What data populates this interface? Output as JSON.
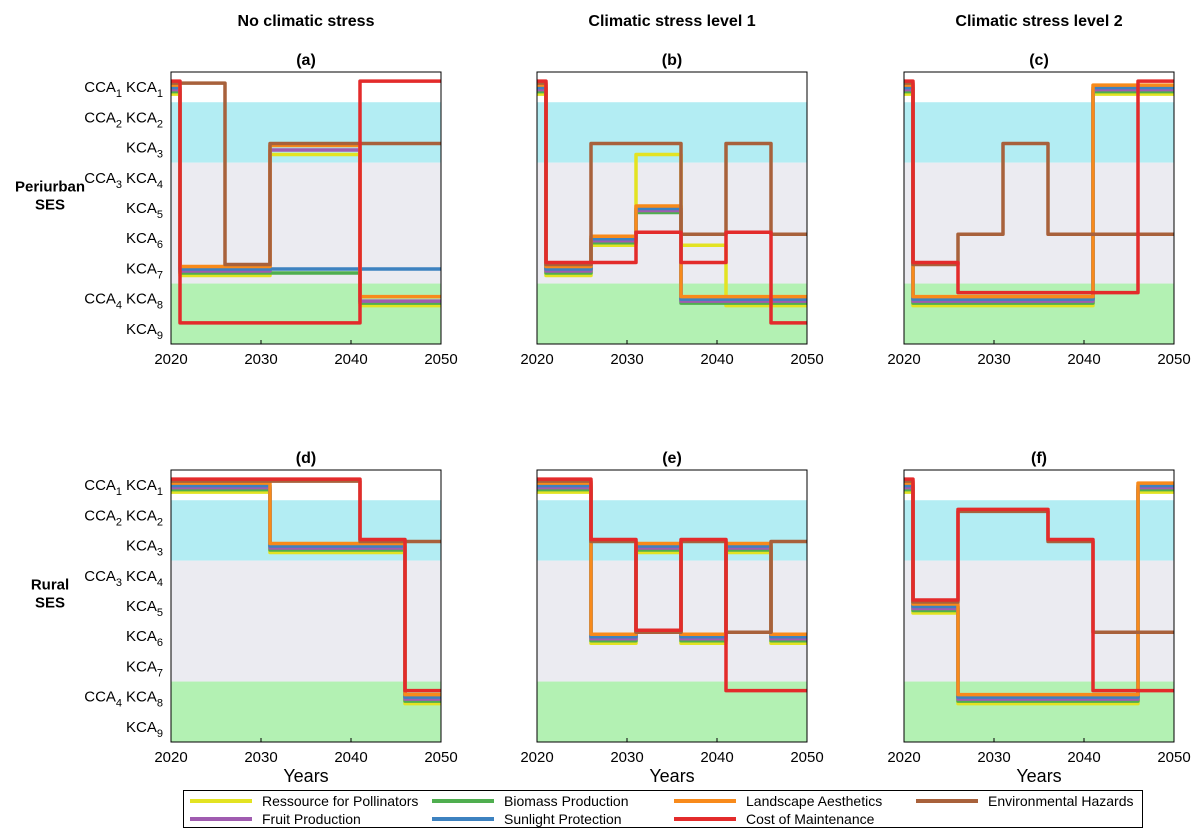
{
  "colors": {
    "band_kca1": "#ffffff",
    "band_cca2": "#b3edf3",
    "band_cca3": "#ebebf1",
    "band_cca4": "#b3f1b3"
  },
  "state_labels": [
    {
      "pre": "CCA",
      "pre_sub": "1",
      "main": "KCA",
      "sub": "1"
    },
    {
      "pre": "CCA",
      "pre_sub": "2",
      "main": "KCA",
      "sub": "2"
    },
    {
      "pre": "",
      "pre_sub": "",
      "main": "KCA",
      "sub": "3"
    },
    {
      "pre": "CCA",
      "pre_sub": "3",
      "main": "KCA",
      "sub": "4"
    },
    {
      "pre": "",
      "pre_sub": "",
      "main": "KCA",
      "sub": "5"
    },
    {
      "pre": "",
      "pre_sub": "",
      "main": "KCA",
      "sub": "6"
    },
    {
      "pre": "",
      "pre_sub": "",
      "main": "KCA",
      "sub": "7"
    },
    {
      "pre": "CCA",
      "pre_sub": "4",
      "main": "KCA",
      "sub": "8"
    },
    {
      "pre": "",
      "pre_sub": "",
      "main": "KCA",
      "sub": "9"
    }
  ],
  "column_headings": [
    "No climatic stress",
    "Climatic stress level 1",
    "Climatic stress level 2"
  ],
  "row_labels": [
    [
      "Periurban",
      "SES"
    ],
    [
      "Rural",
      "SES"
    ]
  ],
  "legend": [
    {
      "name": "Ressource for Pollinators",
      "color": "#e3e322"
    },
    {
      "name": "Biomass Production",
      "color": "#4fae4f"
    },
    {
      "name": "Landscape Aesthetics",
      "color": "#f88a1b"
    },
    {
      "name": "Environmental Hazards",
      "color": "#a8613b"
    },
    {
      "name": "Fruit Production",
      "color": "#a05cb0"
    },
    {
      "name": "Sunlight Protection",
      "color": "#3d82c0"
    },
    {
      "name": "Cost of Maintenance",
      "color": "#e32b2b"
    }
  ],
  "chart_data": [
    {
      "type": "line",
      "title": "(a)",
      "xlabel": "",
      "ylabel": "",
      "xlim": [
        2020,
        2050
      ],
      "x_ticks": [
        2020,
        2030,
        2040,
        2050
      ],
      "series": [
        {
          "name": "Ressource for Pollinators",
          "steps": [
            [
              2020,
              1
            ],
            [
              2021,
              7
            ],
            [
              2031,
              3
            ],
            [
              2041,
              8
            ]
          ]
        },
        {
          "name": "Biomass Production",
          "steps": [
            [
              2020,
              1
            ],
            [
              2021,
              7
            ],
            [
              2041,
              8
            ]
          ]
        },
        {
          "name": "Landscape Aesthetics",
          "steps": [
            [
              2020,
              1
            ],
            [
              2021,
              7
            ],
            [
              2031,
              3
            ],
            [
              2041,
              8
            ]
          ]
        },
        {
          "name": "Environmental Hazards",
          "steps": [
            [
              2020,
              1
            ],
            [
              2026,
              7
            ],
            [
              2031,
              3
            ]
          ]
        },
        {
          "name": "Fruit Production",
          "steps": [
            [
              2020,
              1
            ],
            [
              2021,
              7
            ],
            [
              2031,
              3
            ],
            [
              2041,
              8
            ]
          ]
        },
        {
          "name": "Sunlight Protection",
          "steps": [
            [
              2020,
              1
            ],
            [
              2021,
              7
            ]
          ]
        },
        {
          "name": "Cost of Maintenance",
          "steps": [
            [
              2020,
              1
            ],
            [
              2021,
              9
            ],
            [
              2041,
              1
            ]
          ]
        }
      ]
    },
    {
      "type": "line",
      "title": "(b)",
      "xlabel": "",
      "ylabel": "",
      "xlim": [
        2020,
        2050
      ],
      "x_ticks": [
        2020,
        2030,
        2040,
        2050
      ],
      "series": [
        {
          "name": "Ressource for Pollinators",
          "steps": [
            [
              2020,
              1
            ],
            [
              2021,
              7
            ],
            [
              2026,
              6
            ],
            [
              2031,
              3
            ],
            [
              2036,
              6
            ],
            [
              2041,
              8
            ]
          ]
        },
        {
          "name": "Biomass Production",
          "steps": [
            [
              2020,
              1
            ],
            [
              2021,
              7
            ],
            [
              2026,
              6
            ],
            [
              2031,
              5
            ],
            [
              2036,
              8
            ]
          ]
        },
        {
          "name": "Landscape Aesthetics",
          "steps": [
            [
              2020,
              1
            ],
            [
              2021,
              7
            ],
            [
              2026,
              6
            ],
            [
              2031,
              5
            ],
            [
              2036,
              8
            ]
          ]
        },
        {
          "name": "Environmental Hazards",
          "steps": [
            [
              2020,
              1
            ],
            [
              2021,
              7
            ],
            [
              2026,
              3
            ],
            [
              2036,
              6
            ],
            [
              2041,
              3
            ],
            [
              2046,
              6
            ]
          ]
        },
        {
          "name": "Fruit Production",
          "steps": [
            [
              2020,
              1
            ],
            [
              2021,
              7
            ],
            [
              2026,
              6
            ],
            [
              2031,
              5
            ],
            [
              2036,
              8
            ]
          ]
        },
        {
          "name": "Sunlight Protection",
          "steps": [
            [
              2020,
              1
            ],
            [
              2021,
              7
            ],
            [
              2026,
              6
            ],
            [
              2031,
              5
            ],
            [
              2036,
              8
            ]
          ]
        },
        {
          "name": "Cost of Maintenance",
          "steps": [
            [
              2020,
              1
            ],
            [
              2021,
              7
            ],
            [
              2026,
              7
            ],
            [
              2031,
              6
            ],
            [
              2036,
              7
            ],
            [
              2041,
              6
            ],
            [
              2046,
              9
            ]
          ]
        }
      ]
    },
    {
      "type": "line",
      "title": "(c)",
      "xlabel": "",
      "ylabel": "",
      "xlim": [
        2020,
        2050
      ],
      "x_ticks": [
        2020,
        2030,
        2040,
        2050
      ],
      "series": [
        {
          "name": "Ressource for Pollinators",
          "steps": [
            [
              2020,
              1
            ],
            [
              2021,
              8
            ],
            [
              2041,
              1
            ]
          ]
        },
        {
          "name": "Biomass Production",
          "steps": [
            [
              2020,
              1
            ],
            [
              2021,
              8
            ],
            [
              2041,
              1
            ]
          ]
        },
        {
          "name": "Landscape Aesthetics",
          "steps": [
            [
              2020,
              1
            ],
            [
              2021,
              8
            ],
            [
              2041,
              1
            ]
          ]
        },
        {
          "name": "Environmental Hazards",
          "steps": [
            [
              2020,
              1
            ],
            [
              2021,
              7
            ],
            [
              2026,
              6
            ],
            [
              2031,
              3
            ],
            [
              2036,
              6
            ]
          ]
        },
        {
          "name": "Fruit Production",
          "steps": [
            [
              2020,
              1
            ],
            [
              2021,
              8
            ],
            [
              2041,
              1
            ]
          ]
        },
        {
          "name": "Sunlight Protection",
          "steps": [
            [
              2020,
              1
            ],
            [
              2021,
              8
            ],
            [
              2041,
              1
            ]
          ]
        },
        {
          "name": "Cost of Maintenance",
          "steps": [
            [
              2020,
              1
            ],
            [
              2021,
              7
            ],
            [
              2026,
              8
            ],
            [
              2046,
              1
            ]
          ]
        }
      ]
    },
    {
      "type": "line",
      "title": "(d)",
      "xlabel": "Years",
      "ylabel": "",
      "xlim": [
        2020,
        2050
      ],
      "x_ticks": [
        2020,
        2030,
        2040,
        2050
      ],
      "series": [
        {
          "name": "Ressource for Pollinators",
          "steps": [
            [
              2020,
              1
            ],
            [
              2031,
              3
            ],
            [
              2046,
              8
            ]
          ]
        },
        {
          "name": "Biomass Production",
          "steps": [
            [
              2020,
              1
            ],
            [
              2031,
              3
            ],
            [
              2046,
              8
            ]
          ]
        },
        {
          "name": "Landscape Aesthetics",
          "steps": [
            [
              2020,
              1
            ],
            [
              2031,
              3
            ],
            [
              2046,
              8
            ]
          ]
        },
        {
          "name": "Environmental Hazards",
          "steps": [
            [
              2020,
              1
            ],
            [
              2041,
              3
            ]
          ]
        },
        {
          "name": "Fruit Production",
          "steps": [
            [
              2020,
              1
            ],
            [
              2031,
              3
            ],
            [
              2046,
              8
            ]
          ]
        },
        {
          "name": "Sunlight Protection",
          "steps": [
            [
              2020,
              1
            ],
            [
              2031,
              3
            ],
            [
              2046,
              8
            ]
          ]
        },
        {
          "name": "Cost of Maintenance",
          "steps": [
            [
              2020,
              1
            ],
            [
              2041,
              3
            ],
            [
              2046,
              8
            ]
          ]
        }
      ]
    },
    {
      "type": "line",
      "title": "(e)",
      "xlabel": "Years",
      "ylabel": "",
      "xlim": [
        2020,
        2050
      ],
      "x_ticks": [
        2020,
        2030,
        2040,
        2050
      ],
      "series": [
        {
          "name": "Ressource for Pollinators",
          "steps": [
            [
              2020,
              1
            ],
            [
              2026,
              6
            ],
            [
              2031,
              3
            ],
            [
              2036,
              6
            ],
            [
              2041,
              3
            ],
            [
              2046,
              6
            ]
          ]
        },
        {
          "name": "Biomass Production",
          "steps": [
            [
              2020,
              1
            ],
            [
              2026,
              6
            ],
            [
              2031,
              3
            ],
            [
              2036,
              6
            ],
            [
              2041,
              3
            ],
            [
              2046,
              6
            ]
          ]
        },
        {
          "name": "Landscape Aesthetics",
          "steps": [
            [
              2020,
              1
            ],
            [
              2026,
              6
            ],
            [
              2031,
              3
            ],
            [
              2036,
              6
            ],
            [
              2041,
              3
            ],
            [
              2046,
              6
            ]
          ]
        },
        {
          "name": "Environmental Hazards",
          "steps": [
            [
              2020,
              1
            ],
            [
              2026,
              3
            ],
            [
              2031,
              6
            ],
            [
              2036,
              3
            ],
            [
              2041,
              6
            ],
            [
              2046,
              3
            ]
          ]
        },
        {
          "name": "Fruit Production",
          "steps": [
            [
              2020,
              1
            ],
            [
              2026,
              6
            ],
            [
              2031,
              3
            ],
            [
              2036,
              6
            ],
            [
              2041,
              3
            ],
            [
              2046,
              6
            ]
          ]
        },
        {
          "name": "Sunlight Protection",
          "steps": [
            [
              2020,
              1
            ],
            [
              2026,
              6
            ],
            [
              2031,
              3
            ],
            [
              2036,
              6
            ],
            [
              2041,
              3
            ],
            [
              2046,
              6
            ]
          ]
        },
        {
          "name": "Cost of Maintenance",
          "steps": [
            [
              2020,
              1
            ],
            [
              2026,
              3
            ],
            [
              2031,
              6
            ],
            [
              2036,
              3
            ],
            [
              2041,
              8
            ]
          ]
        }
      ]
    },
    {
      "type": "line",
      "title": "(f)",
      "xlabel": "Years",
      "ylabel": "",
      "xlim": [
        2020,
        2050
      ],
      "x_ticks": [
        2020,
        2030,
        2040,
        2050
      ],
      "series": [
        {
          "name": "Ressource for Pollinators",
          "steps": [
            [
              2020,
              1
            ],
            [
              2021,
              5
            ],
            [
              2026,
              8
            ],
            [
              2046,
              1
            ]
          ]
        },
        {
          "name": "Biomass Production",
          "steps": [
            [
              2020,
              1
            ],
            [
              2021,
              5
            ],
            [
              2026,
              8
            ],
            [
              2046,
              1
            ]
          ]
        },
        {
          "name": "Landscape Aesthetics",
          "steps": [
            [
              2020,
              1
            ],
            [
              2021,
              5
            ],
            [
              2026,
              8
            ],
            [
              2046,
              1
            ]
          ]
        },
        {
          "name": "Environmental Hazards",
          "steps": [
            [
              2020,
              1
            ],
            [
              2021,
              5
            ],
            [
              2026,
              2
            ],
            [
              2036,
              3
            ],
            [
              2041,
              6
            ]
          ]
        },
        {
          "name": "Fruit Production",
          "steps": [
            [
              2020,
              1
            ],
            [
              2021,
              5
            ],
            [
              2026,
              8
            ],
            [
              2046,
              1
            ]
          ]
        },
        {
          "name": "Sunlight Protection",
          "steps": [
            [
              2020,
              1
            ],
            [
              2021,
              5
            ],
            [
              2026,
              8
            ],
            [
              2046,
              1
            ]
          ]
        },
        {
          "name": "Cost of Maintenance",
          "steps": [
            [
              2020,
              1
            ],
            [
              2021,
              5
            ],
            [
              2026,
              2
            ],
            [
              2036,
              3
            ],
            [
              2041,
              8
            ]
          ]
        }
      ]
    }
  ]
}
